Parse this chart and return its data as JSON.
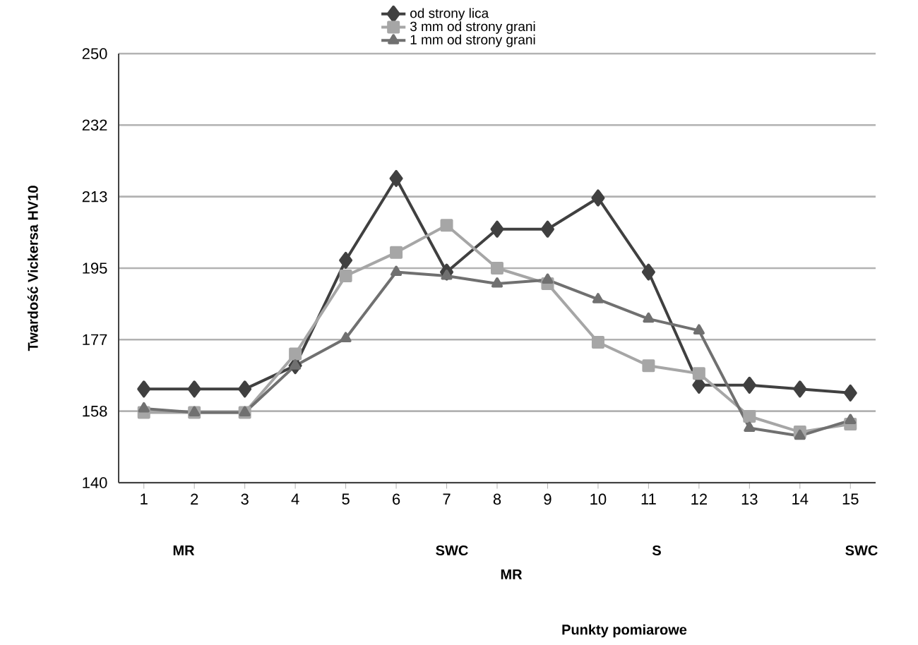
{
  "chart_data": {
    "type": "line",
    "ylabel": "Twardość Vickersa HV10",
    "categories": [
      "1",
      "2",
      "3",
      "4",
      "5",
      "6",
      "7",
      "8",
      "9",
      "10",
      "11",
      "12",
      "13",
      "14",
      "15"
    ],
    "series": [
      {
        "name": "od strony lica",
        "color": "#404040",
        "marker": "diamond",
        "values": [
          164,
          164,
          164,
          170,
          197,
          218,
          194,
          205,
          205,
          213,
          194,
          165,
          165,
          164,
          163
        ]
      },
      {
        "name": "3 mm od strony grani",
        "color": "#a6a6a6",
        "marker": "square",
        "values": [
          158,
          158,
          158,
          173,
          193,
          199,
          206,
          195,
          191,
          176,
          170,
          168,
          157,
          153,
          155
        ]
      },
      {
        "name": "1 mm od strony grani",
        "color": "#707070",
        "marker": "triangle",
        "values": [
          159,
          158,
          158,
          170,
          177,
          194,
          193,
          191,
          192,
          187,
          182,
          179,
          154,
          152,
          156
        ]
      }
    ],
    "ylim": [
      140,
      250
    ],
    "yticks": [
      140,
      {
        "value": 158.33,
        "label": "158"
      },
      {
        "value": 176.67,
        "label": "177"
      },
      195,
      {
        "value": 213.33,
        "label": "213"
      },
      {
        "value": 231.67,
        "label": "232"
      },
      250
    ],
    "grid": "y",
    "legend": "top",
    "line_style": "solid",
    "annotations": [
      "MR",
      "SWC",
      "MR",
      "S",
      "SWC",
      "Punkty pomiarowe"
    ]
  }
}
